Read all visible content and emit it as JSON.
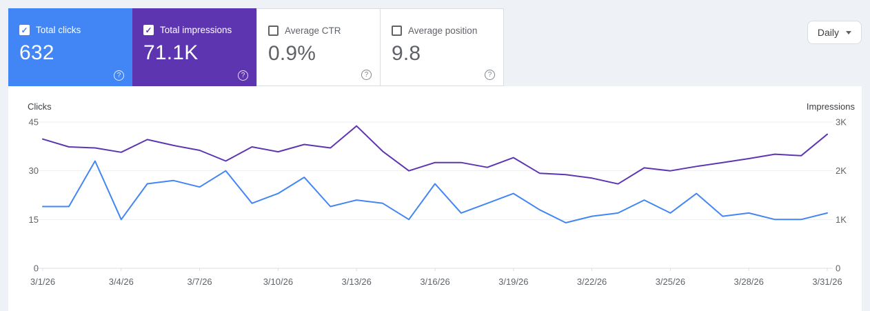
{
  "colors": {
    "clicks": "#4285f4",
    "impressions": "#5e35b1"
  },
  "icons": {
    "check": "✓",
    "help": "?"
  },
  "controls": {
    "granularity": "Daily"
  },
  "metrics": [
    {
      "label": "Total clicks",
      "value": "632",
      "selected": true
    },
    {
      "label": "Total impressions",
      "value": "71.1K",
      "selected": true
    },
    {
      "label": "Average CTR",
      "value": "0.9%",
      "selected": false
    },
    {
      "label": "Average position",
      "value": "9.8",
      "selected": false
    }
  ],
  "chart_data": {
    "type": "line",
    "x": [
      "3/1/26",
      "3/2/26",
      "3/3/26",
      "3/4/26",
      "3/5/26",
      "3/6/26",
      "3/7/26",
      "3/8/26",
      "3/9/26",
      "3/10/26",
      "3/11/26",
      "3/12/26",
      "3/13/26",
      "3/14/26",
      "3/15/26",
      "3/16/26",
      "3/17/26",
      "3/18/26",
      "3/19/26",
      "3/20/26",
      "3/21/26",
      "3/22/26",
      "3/23/26",
      "3/24/26",
      "3/25/26",
      "3/26/26",
      "3/27/26",
      "3/28/26",
      "3/29/26",
      "3/30/26",
      "3/31/26"
    ],
    "x_tick_indices": [
      0,
      3,
      6,
      9,
      12,
      15,
      18,
      21,
      24,
      27,
      30
    ],
    "series": [
      {
        "name": "Clicks",
        "axis": "left",
        "color": "#4285f4",
        "values": [
          19,
          19,
          33,
          15,
          26,
          27,
          25,
          30,
          20,
          23,
          28,
          19,
          21,
          20,
          15,
          26,
          17,
          20,
          23,
          18,
          14,
          16,
          17,
          21,
          17,
          23,
          16,
          17,
          15,
          15,
          17
        ]
      },
      {
        "name": "Impressions",
        "axis": "right",
        "color": "#5e35b1",
        "values": [
          2650,
          2490,
          2470,
          2380,
          2640,
          2520,
          2420,
          2200,
          2490,
          2390,
          2540,
          2470,
          2920,
          2400,
          2000,
          2170,
          2170,
          2070,
          2270,
          1950,
          1920,
          1850,
          1730,
          2060,
          2000,
          2090,
          2170,
          2250,
          2340,
          2310,
          2750
        ]
      }
    ],
    "left_axis": {
      "label": "Clicks",
      "max": 45,
      "tick_values": [
        0,
        15,
        30,
        45
      ],
      "tick_labels": [
        "0",
        "15",
        "30",
        "45"
      ]
    },
    "right_axis": {
      "label": "Impressions",
      "max": 3000,
      "tick_values": [
        0,
        1000,
        2000,
        3000
      ],
      "tick_labels": [
        "0",
        "1K",
        "2K",
        "3K"
      ]
    },
    "grid": true,
    "legend_position": "none"
  }
}
